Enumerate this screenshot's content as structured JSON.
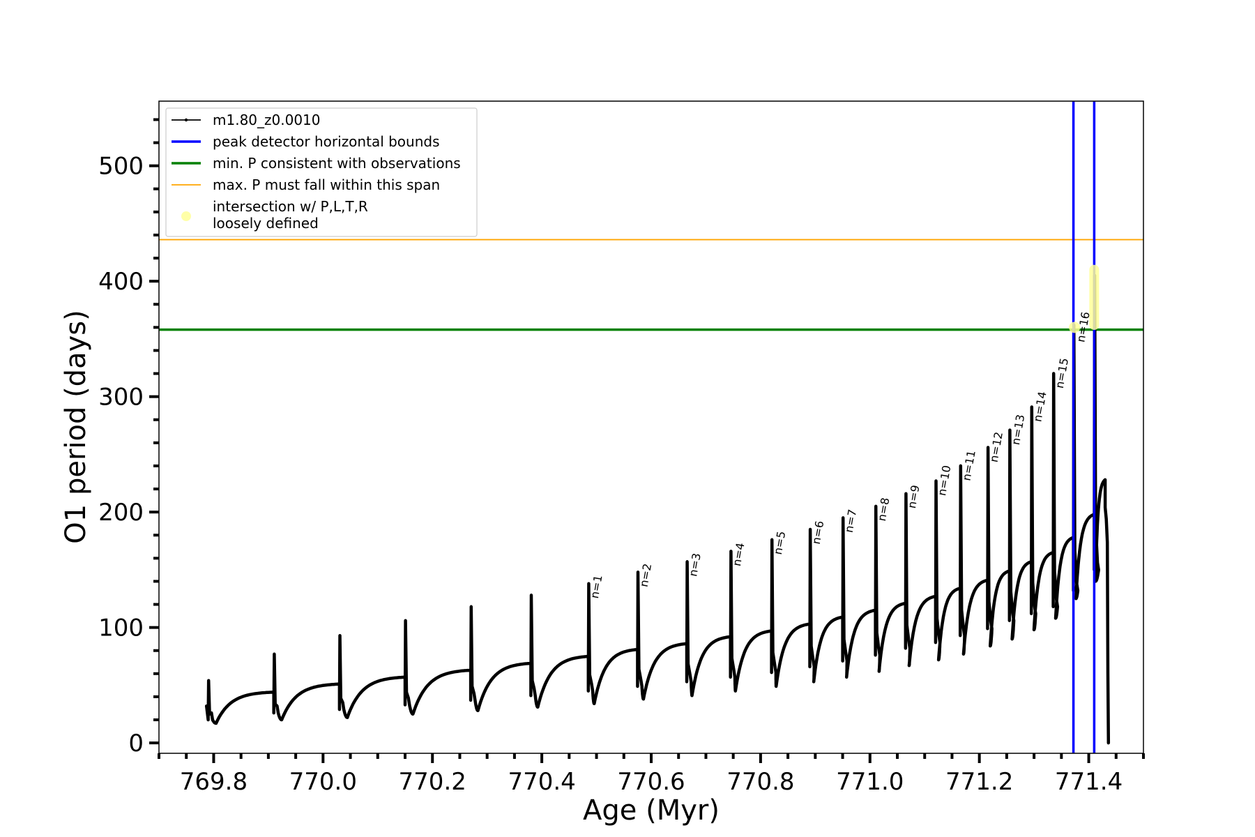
{
  "chart_data": {
    "type": "line",
    "xlabel": "Age (Myr)",
    "ylabel": "O1 period (days)",
    "xlim": [
      769.7,
      771.5
    ],
    "ylim": [
      -9,
      556
    ],
    "x_ticks": [
      {
        "value": 769.8,
        "label": "769.8"
      },
      {
        "value": 770.0,
        "label": "770.0"
      },
      {
        "value": 770.2,
        "label": "770.2"
      },
      {
        "value": 770.4,
        "label": "770.4"
      },
      {
        "value": 770.6,
        "label": "770.6"
      },
      {
        "value": 770.8,
        "label": "770.8"
      },
      {
        "value": 771.0,
        "label": "771.0"
      },
      {
        "value": 771.2,
        "label": "771.2"
      },
      {
        "value": 771.4,
        "label": "771.4"
      }
    ],
    "y_ticks": [
      {
        "value": 0,
        "label": "0"
      },
      {
        "value": 100,
        "label": "100"
      },
      {
        "value": 200,
        "label": "200"
      },
      {
        "value": 300,
        "label": "300"
      },
      {
        "value": 400,
        "label": "400"
      },
      {
        "value": 500,
        "label": "500"
      }
    ],
    "grid": false,
    "legend_position": "top-left",
    "legend": [
      {
        "label": "m1.80_z0.0010",
        "kind": "line-marker",
        "color": "#000000"
      },
      {
        "label": "peak detector horizontal bounds",
        "kind": "line",
        "color": "#0000ff"
      },
      {
        "label": "min. P consistent with observations",
        "kind": "line",
        "color": "#008000"
      },
      {
        "label": "max. P must fall within this span",
        "kind": "thin-line",
        "color": "#ffa500"
      },
      {
        "label": "intersection w/ P,L,T,R",
        "label2": "loosely defined",
        "kind": "dot",
        "color": "#ffff99"
      }
    ],
    "series": [
      {
        "name": "m1.80_z0.0010",
        "color": "#000000",
        "pulses": [
          {
            "start": 769.79,
            "spike": 54,
            "drop": 20,
            "min": 17,
            "plateau": 44
          },
          {
            "start": 769.91,
            "spike": 77,
            "drop": 26,
            "min": 20,
            "plateau": 51
          },
          {
            "start": 770.03,
            "spike": 93,
            "drop": 29,
            "min": 22,
            "plateau": 57
          },
          {
            "start": 770.15,
            "spike": 106,
            "drop": 33,
            "min": 25,
            "plateau": 63
          },
          {
            "start": 770.27,
            "spike": 118,
            "drop": 37,
            "min": 28,
            "plateau": 69
          },
          {
            "start": 770.38,
            "spike": 128,
            "drop": 41,
            "min": 31,
            "plateau": 75
          },
          {
            "start": 770.485,
            "spike": 138,
            "drop": 45,
            "min": 34,
            "plateau": 81
          },
          {
            "start": 770.575,
            "spike": 148,
            "drop": 49,
            "min": 38,
            "plateau": 86
          },
          {
            "start": 770.665,
            "spike": 157,
            "drop": 53,
            "min": 41,
            "plateau": 92
          },
          {
            "start": 770.745,
            "spike": 166,
            "drop": 57,
            "min": 45,
            "plateau": 97
          },
          {
            "start": 770.82,
            "spike": 176,
            "drop": 61,
            "min": 49,
            "plateau": 103
          },
          {
            "start": 770.89,
            "spike": 185,
            "drop": 66,
            "min": 53,
            "plateau": 109
          },
          {
            "start": 770.95,
            "spike": 195,
            "drop": 71,
            "min": 57,
            "plateau": 115
          },
          {
            "start": 771.01,
            "spike": 205,
            "drop": 76,
            "min": 62,
            "plateau": 121
          },
          {
            "start": 771.065,
            "spike": 216,
            "drop": 82,
            "min": 67,
            "plateau": 127
          },
          {
            "start": 771.12,
            "spike": 227,
            "drop": 87,
            "min": 72,
            "plateau": 134
          },
          {
            "start": 771.165,
            "spike": 240,
            "drop": 93,
            "min": 77,
            "plateau": 141
          },
          {
            "start": 771.215,
            "spike": 256,
            "drop": 99,
            "min": 84,
            "plateau": 149
          },
          {
            "start": 771.255,
            "spike": 271,
            "drop": 106,
            "min": 90,
            "plateau": 157
          },
          {
            "start": 771.295,
            "spike": 291,
            "drop": 112,
            "min": 98,
            "plateau": 165
          },
          {
            "start": 771.335,
            "spike": 320,
            "drop": 118,
            "min": 108,
            "plateau": 178
          },
          {
            "start": 771.372,
            "spike": 362,
            "drop": 132,
            "min": 125,
            "plateau": 198
          },
          {
            "start": 771.41,
            "spike": 405,
            "drop": 150,
            "min": 140,
            "plateau": 228
          }
        ],
        "final": {
          "age": 771.43,
          "rise": 204,
          "end": 0
        }
      }
    ],
    "hlines": [
      {
        "name": "min. P consistent with observations",
        "value": 358,
        "color": "#008000"
      },
      {
        "name": "max. P must fall within this span",
        "value": 436,
        "color": "#ffa500"
      }
    ],
    "vlines": [
      {
        "name": "peak detector horizontal bounds",
        "value": 771.372,
        "color": "#0000ff"
      },
      {
        "name": "peak detector horizontal bounds",
        "value": 771.41,
        "color": "#0000ff"
      }
    ],
    "highlights": [
      {
        "x": 771.374,
        "y": 360,
        "color": "#ffff99"
      },
      {
        "x": 771.41,
        "y": 410,
        "y2": 362,
        "color": "#ffff99"
      }
    ],
    "pulse_labels": [
      {
        "label": "n=1",
        "x": 770.485,
        "y": 138
      },
      {
        "label": "n=2",
        "x": 770.575,
        "y": 148
      },
      {
        "label": "n=3",
        "x": 770.665,
        "y": 157
      },
      {
        "label": "n=4",
        "x": 770.745,
        "y": 166
      },
      {
        "label": "n=5",
        "x": 770.82,
        "y": 176
      },
      {
        "label": "n=6",
        "x": 770.89,
        "y": 185
      },
      {
        "label": "n=7",
        "x": 770.95,
        "y": 195
      },
      {
        "label": "n=8",
        "x": 771.01,
        "y": 205
      },
      {
        "label": "n=9",
        "x": 771.065,
        "y": 216
      },
      {
        "label": "n=10",
        "x": 771.12,
        "y": 227
      },
      {
        "label": "n=11",
        "x": 771.165,
        "y": 240
      },
      {
        "label": "n=12",
        "x": 771.215,
        "y": 256
      },
      {
        "label": "n=13",
        "x": 771.255,
        "y": 271
      },
      {
        "label": "n=14",
        "x": 771.295,
        "y": 291
      },
      {
        "label": "n=15",
        "x": 771.335,
        "y": 320
      },
      {
        "label": "n=16",
        "x": 771.374,
        "y": 360
      }
    ]
  }
}
